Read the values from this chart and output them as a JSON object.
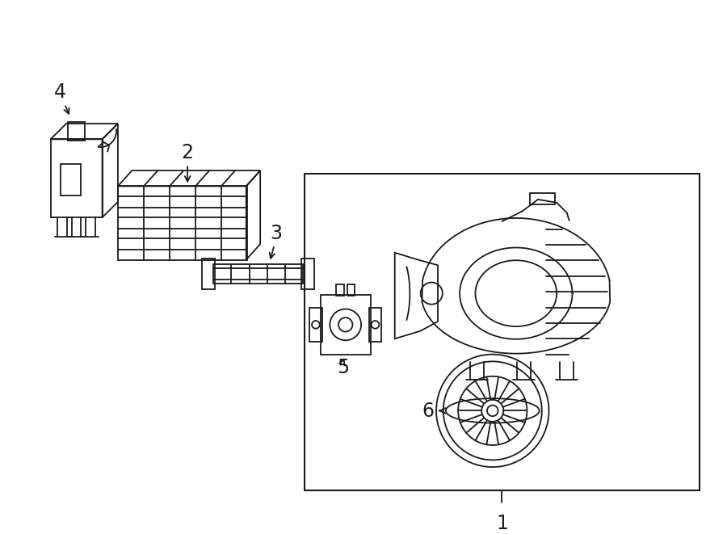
{
  "bg_color": "#ffffff",
  "line_color": "#1a1a1a",
  "fig_width": 9.0,
  "fig_height": 6.61,
  "dpi": 100,
  "label_1": "1",
  "label_2": "2",
  "label_3": "3",
  "label_4": "4",
  "label_5": "5",
  "label_6": "6",
  "font_size_labels": 17
}
